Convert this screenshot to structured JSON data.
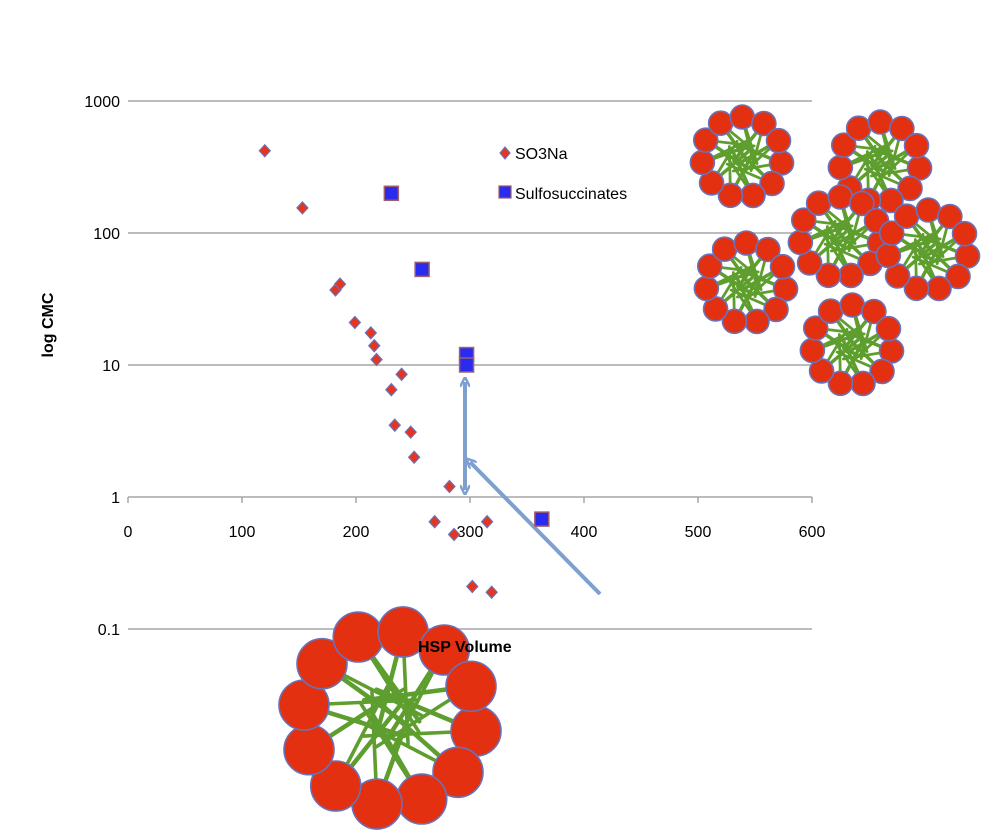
{
  "chart_data": {
    "type": "scatter",
    "title": "",
    "xlabel": "HSP Volume",
    "ylabel": "log CMC",
    "xlim": [
      0,
      600
    ],
    "ylim": [
      0.1,
      1000
    ],
    "yscale": "log",
    "x_ticks": [
      "0",
      "100",
      "200",
      "300",
      "400",
      "500",
      "600"
    ],
    "y_ticks": [
      "0.1",
      "1",
      "10",
      "100",
      "1000"
    ],
    "grid": "horizontal",
    "legend_position": "top-center",
    "series": [
      {
        "name": "SO3Na",
        "marker": "diamond",
        "color": "#e8341c",
        "points": [
          [
            120,
            420
          ],
          [
            153,
            155
          ],
          [
            182,
            37
          ],
          [
            186,
            41
          ],
          [
            199,
            21
          ],
          [
            213,
            17.5
          ],
          [
            216,
            14
          ],
          [
            218,
            11
          ],
          [
            231,
            6.5
          ],
          [
            234,
            3.5
          ],
          [
            240,
            8.5
          ],
          [
            248,
            3.1
          ],
          [
            251,
            2.0
          ],
          [
            269,
            0.65
          ],
          [
            282,
            1.2
          ],
          [
            286,
            0.52
          ],
          [
            302,
            0.21
          ],
          [
            315,
            0.65
          ],
          [
            319,
            0.19
          ]
        ]
      },
      {
        "name": "Sulfosuccinates",
        "marker": "square",
        "color": "#2b2bef",
        "points": [
          [
            231,
            200
          ],
          [
            258,
            53
          ],
          [
            297,
            12
          ],
          [
            297,
            10
          ],
          [
            363,
            0.68
          ]
        ]
      }
    ]
  },
  "colors": {
    "grid": "#a6a6a6",
    "arrow": "#7f9fcf",
    "micelle_head": "#e33010",
    "micelle_stroke": "#6a72b8",
    "micelle_tail": "#5e9e2e"
  },
  "illustrations": {
    "icons": [
      "large-micelle-icon",
      "micelle-cluster-icon"
    ]
  }
}
